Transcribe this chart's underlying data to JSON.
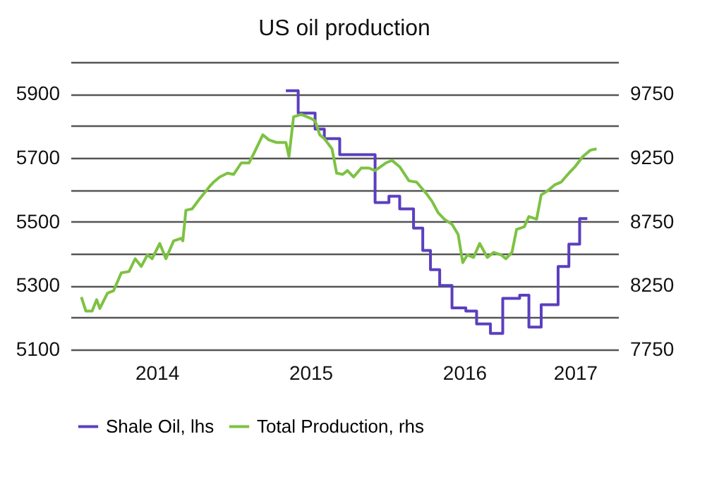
{
  "chart_data": {
    "type": "line",
    "title": "US oil production",
    "xlim": [
      2013.94,
      2017.5
    ],
    "xticks": [
      {
        "value": 2014.5,
        "label": "2014"
      },
      {
        "value": 2015.5,
        "label": "2015"
      },
      {
        "value": 2016.5,
        "label": "2016"
      },
      {
        "value": 2017.22,
        "label": "2017"
      }
    ],
    "ylim": [
      5100,
      6000
    ],
    "yticks": [
      5100,
      {
        "value": 5200,
        "label": null
      },
      5300,
      {
        "value": 5400,
        "label": null
      },
      5500,
      {
        "value": 5600,
        "label": null
      },
      5700,
      {
        "value": 5800,
        "label": null
      },
      5900,
      {
        "value": 6000,
        "label": null
      }
    ],
    "y2lim": [
      7750,
      10000
    ],
    "y2ticks": [
      7750,
      8250,
      8750,
      9250,
      9750
    ],
    "grid": "y",
    "legend": "bottom",
    "series": [
      {
        "name": "Shale Oil, lhs",
        "color": "#5b3fbf",
        "type": "step",
        "x": [
          2015.34,
          2015.42,
          2015.53,
          2015.59,
          2015.69,
          2015.92,
          2016.01,
          2016.08,
          2016.17,
          2016.23,
          2016.28,
          2016.34,
          2016.42,
          2016.51,
          2016.58,
          2016.67,
          2016.75,
          2016.86,
          2016.92,
          2017.0,
          2017.11,
          2017.18,
          2017.25,
          2017.3
        ],
        "values": [
          5910,
          5840,
          5790,
          5760,
          5710,
          5560,
          5580,
          5540,
          5480,
          5410,
          5350,
          5300,
          5230,
          5220,
          5180,
          5150,
          5260,
          5270,
          5170,
          5240,
          5360,
          5430,
          5510,
          5510
        ]
      },
      {
        "name": "Total Production, rhs",
        "color": "#7dc242",
        "axis": "y2",
        "x": [
          2014.01,
          2014.04,
          2014.08,
          2014.11,
          2014.13,
          2014.18,
          2014.22,
          2014.27,
          2014.32,
          2014.36,
          2014.4,
          2014.44,
          2014.47,
          2014.52,
          2014.56,
          2014.61,
          2014.66,
          2014.67,
          2014.69,
          2014.73,
          2014.78,
          2014.84,
          2014.87,
          2014.91,
          2014.96,
          2015.0,
          2015.05,
          2015.1,
          2015.13,
          2015.19,
          2015.23,
          2015.28,
          2015.34,
          2015.36,
          2015.39,
          2015.44,
          2015.5,
          2015.53,
          2015.56,
          2015.59,
          2015.64,
          2015.67,
          2015.71,
          2015.74,
          2015.78,
          2015.83,
          2015.88,
          2015.92,
          2015.99,
          2016.03,
          2016.08,
          2016.14,
          2016.19,
          2016.26,
          2016.29,
          2016.33,
          2016.37,
          2016.42,
          2016.46,
          2016.49,
          2016.52,
          2016.56,
          2016.6,
          2016.65,
          2016.69,
          2016.74,
          2016.77,
          2016.81,
          2016.84,
          2016.89,
          2016.92,
          2016.97,
          2017.0,
          2017.04,
          2017.09,
          2017.13,
          2017.18,
          2017.22,
          2017.27,
          2017.32,
          2017.36
        ],
        "values": [
          8160,
          8050,
          8050,
          8140,
          8070,
          8190,
          8210,
          8350,
          8360,
          8460,
          8400,
          8490,
          8460,
          8580,
          8460,
          8600,
          8620,
          8600,
          8840,
          8850,
          8930,
          9020,
          9060,
          9100,
          9130,
          9120,
          9210,
          9210,
          9280,
          9430,
          9390,
          9370,
          9370,
          9260,
          9570,
          9590,
          9560,
          9540,
          9430,
          9400,
          9320,
          9130,
          9120,
          9150,
          9100,
          9170,
          9170,
          9150,
          9210,
          9230,
          9180,
          9070,
          9060,
          8960,
          8910,
          8820,
          8770,
          8730,
          8650,
          8430,
          8490,
          8470,
          8580,
          8470,
          8510,
          8490,
          8460,
          8510,
          8690,
          8710,
          8790,
          8770,
          8960,
          8990,
          9040,
          9060,
          9130,
          9180,
          9260,
          9310,
          9320
        ]
      }
    ]
  }
}
